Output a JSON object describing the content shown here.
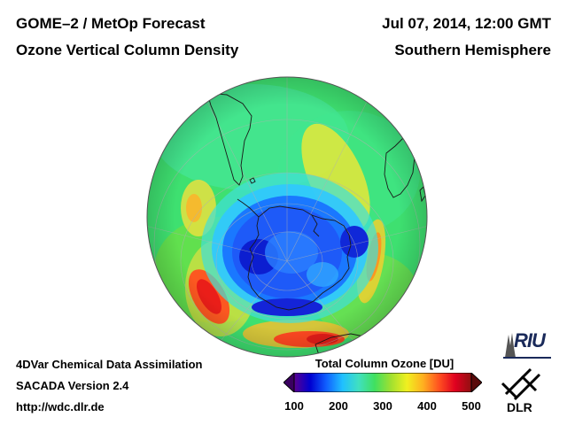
{
  "header": {
    "title_line1": "GOME–2 / MetOp Forecast",
    "title_line2": "Ozone Vertical Column Density",
    "date": "Jul 07, 2014, 12:00 GMT",
    "region": "Southern Hemisphere"
  },
  "footer": {
    "line1": "4DVar Chemical Data Assimilation",
    "line2": "SACADA Version 2.4",
    "line3": "http://wdc.dlr.de"
  },
  "colorbar": {
    "title": "Total Column Ozone [DU]",
    "min": 100,
    "max": 500,
    "ticks": [
      "100",
      "200",
      "300",
      "400",
      "500"
    ],
    "colors": [
      "#5a0090",
      "#0000d0",
      "#1060ff",
      "#20c0ff",
      "#40e0c0",
      "#40e060",
      "#a0e030",
      "#f0f020",
      "#ffb020",
      "#ff5020",
      "#e00020",
      "#901010"
    ]
  },
  "logos": {
    "riu": "RIU",
    "dlr": "DLR"
  },
  "map": {
    "projection": "orthographic-south-pole",
    "ozone_low_region": "Antarctic ozone hole",
    "colors": {
      "ocean_green": "#40e060",
      "low_blue": "#2040ff",
      "very_low": "#1020c0",
      "high_red": "#ff3020",
      "high_yellow": "#f0e040"
    }
  }
}
